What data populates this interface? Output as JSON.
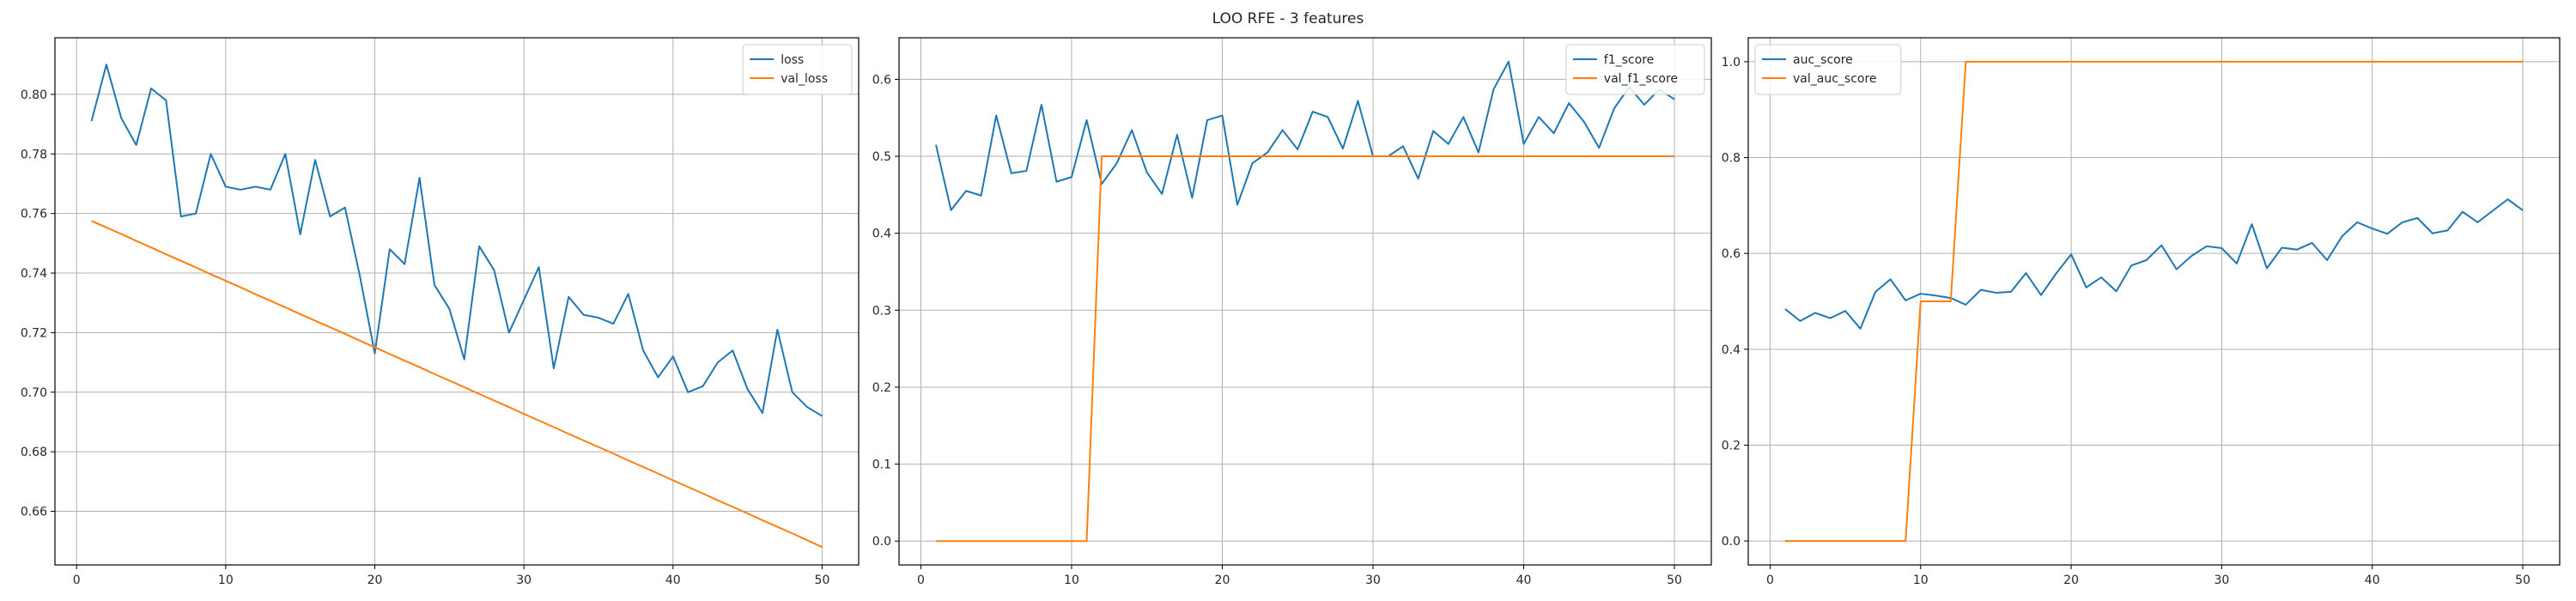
{
  "figure": {
    "title": "LOO RFE - 3 features"
  },
  "colors": {
    "series1": "#1f77b4",
    "series2": "#ff7f0e",
    "grid": "#b0b0b0",
    "axis": "#000000"
  },
  "chart_data": [
    {
      "type": "line",
      "title": "",
      "xlabel": "",
      "ylabel": "",
      "grid": true,
      "legend_position": "top-right",
      "xlim": [
        -1.45,
        52.45
      ],
      "ylim": [
        0.642,
        0.819
      ],
      "xticks": [
        0,
        10,
        20,
        30,
        40,
        50
      ],
      "yticks": [
        0.66,
        0.68,
        0.7,
        0.72,
        0.74,
        0.76,
        0.78,
        0.8
      ],
      "yticklabels": [
        "0.66",
        "0.68",
        "0.70",
        "0.72",
        "0.74",
        "0.76",
        "0.78",
        "0.80"
      ],
      "series": [
        {
          "name": "loss",
          "x": [
            1,
            2,
            3,
            4,
            5,
            6,
            7,
            8,
            9,
            10,
            11,
            12,
            13,
            14,
            15,
            16,
            17,
            18,
            19,
            20,
            21,
            22,
            23,
            24,
            25,
            26,
            27,
            28,
            29,
            30,
            31,
            32,
            33,
            34,
            35,
            36,
            37,
            38,
            39,
            40,
            41,
            42,
            43,
            44,
            45,
            46,
            47,
            48,
            49,
            50
          ],
          "y": [
            0.791,
            0.81,
            0.792,
            0.783,
            0.802,
            0.798,
            0.759,
            0.76,
            0.78,
            0.769,
            0.768,
            0.769,
            0.768,
            0.78,
            0.753,
            0.778,
            0.759,
            0.762,
            0.739,
            0.713,
            0.748,
            0.743,
            0.772,
            0.736,
            0.728,
            0.711,
            0.749,
            0.741,
            0.72,
            0.731,
            0.742,
            0.708,
            0.732,
            0.726,
            0.725,
            0.723,
            0.733,
            0.714,
            0.705,
            0.712,
            0.7,
            0.702,
            0.71,
            0.714,
            0.701,
            0.693,
            0.721,
            0.7,
            0.695,
            0.692
          ]
        },
        {
          "name": "val_loss",
          "x": [
            1,
            2,
            3,
            4,
            5,
            6,
            7,
            8,
            9,
            10,
            11,
            12,
            13,
            14,
            15,
            16,
            17,
            18,
            19,
            20,
            21,
            22,
            23,
            24,
            25,
            26,
            27,
            28,
            29,
            30,
            31,
            32,
            33,
            34,
            35,
            36,
            37,
            38,
            39,
            40,
            41,
            42,
            43,
            44,
            45,
            46,
            47,
            48,
            49,
            50
          ],
          "y": [
            0.7575,
            0.7553,
            0.7531,
            0.7508,
            0.7486,
            0.7463,
            0.7441,
            0.7419,
            0.7396,
            0.7374,
            0.7352,
            0.7329,
            0.7307,
            0.7285,
            0.7262,
            0.724,
            0.7218,
            0.7196,
            0.7173,
            0.7151,
            0.7128,
            0.7106,
            0.7084,
            0.7061,
            0.7039,
            0.7017,
            0.6994,
            0.6972,
            0.695,
            0.6927,
            0.6905,
            0.6883,
            0.686,
            0.6838,
            0.6816,
            0.6794,
            0.6771,
            0.6749,
            0.6727,
            0.6704,
            0.6682,
            0.666,
            0.6637,
            0.6615,
            0.6593,
            0.657,
            0.6548,
            0.6526,
            0.6503,
            0.648
          ]
        }
      ]
    },
    {
      "type": "line",
      "title": "",
      "xlabel": "",
      "ylabel": "",
      "grid": true,
      "legend_position": "top-right",
      "xlim": [
        -1.45,
        52.45
      ],
      "ylim": [
        -0.031,
        0.654
      ],
      "xticks": [
        0,
        10,
        20,
        30,
        40,
        50
      ],
      "yticks": [
        0.0,
        0.1,
        0.2,
        0.3,
        0.4,
        0.5,
        0.6
      ],
      "yticklabels": [
        "0.0",
        "0.1",
        "0.2",
        "0.3",
        "0.4",
        "0.5",
        "0.6"
      ],
      "series": [
        {
          "name": "f1_score",
          "x": [
            1,
            2,
            3,
            4,
            5,
            6,
            7,
            8,
            9,
            10,
            11,
            12,
            13,
            14,
            15,
            16,
            17,
            18,
            19,
            20,
            21,
            22,
            23,
            24,
            25,
            26,
            27,
            28,
            29,
            30,
            31,
            32,
            33,
            34,
            35,
            36,
            37,
            38,
            39,
            40,
            41,
            42,
            43,
            44,
            45,
            46,
            47,
            48,
            49,
            50
          ],
          "y": [
            0.515,
            0.43,
            0.455,
            0.449,
            0.553,
            0.478,
            0.481,
            0.567,
            0.467,
            0.473,
            0.547,
            0.464,
            0.491,
            0.534,
            0.479,
            0.451,
            0.528,
            0.446,
            0.547,
            0.553,
            0.437,
            0.491,
            0.505,
            0.534,
            0.509,
            0.558,
            0.551,
            0.51,
            0.572,
            0.5,
            0.5,
            0.513,
            0.471,
            0.533,
            0.516,
            0.551,
            0.505,
            0.587,
            0.623,
            0.516,
            0.551,
            0.53,
            0.569,
            0.545,
            0.511,
            0.562,
            0.59,
            0.567,
            0.587,
            0.574
          ]
        },
        {
          "name": "val_f1_score",
          "x": [
            1,
            2,
            3,
            4,
            5,
            6,
            7,
            8,
            9,
            10,
            11,
            12,
            13,
            14,
            15,
            16,
            17,
            18,
            19,
            20,
            21,
            22,
            23,
            24,
            25,
            26,
            27,
            28,
            29,
            30,
            31,
            32,
            33,
            34,
            35,
            36,
            37,
            38,
            39,
            40,
            41,
            42,
            43,
            44,
            45,
            46,
            47,
            48,
            49,
            50
          ],
          "y": [
            0.0,
            0.0,
            0.0,
            0.0,
            0.0,
            0.0,
            0.0,
            0.0,
            0.0,
            0.0,
            0.0,
            0.5,
            0.5,
            0.5,
            0.5,
            0.5,
            0.5,
            0.5,
            0.5,
            0.5,
            0.5,
            0.5,
            0.5,
            0.5,
            0.5,
            0.5,
            0.5,
            0.5,
            0.5,
            0.5,
            0.5,
            0.5,
            0.5,
            0.5,
            0.5,
            0.5,
            0.5,
            0.5,
            0.5,
            0.5,
            0.5,
            0.5,
            0.5,
            0.5,
            0.5,
            0.5,
            0.5,
            0.5,
            0.5,
            0.5
          ]
        }
      ]
    },
    {
      "type": "line",
      "title": "",
      "xlabel": "",
      "ylabel": "",
      "grid": true,
      "legend_position": "top-left",
      "xlim": [
        -1.45,
        52.45
      ],
      "ylim": [
        -0.05,
        1.05
      ],
      "xticks": [
        0,
        10,
        20,
        30,
        40,
        50
      ],
      "yticks": [
        0.0,
        0.2,
        0.4,
        0.6,
        0.8,
        1.0
      ],
      "yticklabels": [
        "0.0",
        "0.2",
        "0.4",
        "0.6",
        "0.8",
        "1.0"
      ],
      "series": [
        {
          "name": "auc_score",
          "x": [
            1,
            2,
            3,
            4,
            5,
            6,
            7,
            8,
            9,
            10,
            11,
            12,
            13,
            14,
            15,
            16,
            17,
            18,
            19,
            20,
            21,
            22,
            23,
            24,
            25,
            26,
            27,
            28,
            29,
            30,
            31,
            32,
            33,
            34,
            35,
            36,
            37,
            38,
            39,
            40,
            41,
            42,
            43,
            44,
            45,
            46,
            47,
            48,
            49,
            50
          ],
          "y": [
            0.484,
            0.459,
            0.476,
            0.465,
            0.48,
            0.443,
            0.52,
            0.546,
            0.502,
            0.516,
            0.512,
            0.507,
            0.493,
            0.524,
            0.518,
            0.52,
            0.559,
            0.513,
            0.558,
            0.598,
            0.529,
            0.55,
            0.521,
            0.575,
            0.586,
            0.617,
            0.567,
            0.595,
            0.615,
            0.611,
            0.579,
            0.661,
            0.569,
            0.612,
            0.608,
            0.622,
            0.586,
            0.636,
            0.665,
            0.652,
            0.641,
            0.665,
            0.674,
            0.642,
            0.648,
            0.687,
            0.665,
            0.689,
            0.713,
            0.69
          ]
        },
        {
          "name": "val_auc_score",
          "x": [
            1,
            2,
            3,
            4,
            5,
            6,
            7,
            8,
            9,
            10,
            11,
            12,
            13,
            14,
            15,
            16,
            17,
            18,
            19,
            20,
            21,
            22,
            23,
            24,
            25,
            26,
            27,
            28,
            29,
            30,
            31,
            32,
            33,
            34,
            35,
            36,
            37,
            38,
            39,
            40,
            41,
            42,
            43,
            44,
            45,
            46,
            47,
            48,
            49,
            50
          ],
          "y": [
            0.0,
            0.0,
            0.0,
            0.0,
            0.0,
            0.0,
            0.0,
            0.0,
            0.0,
            0.5,
            0.5,
            0.5,
            1.0,
            1.0,
            1.0,
            1.0,
            1.0,
            1.0,
            1.0,
            1.0,
            1.0,
            1.0,
            1.0,
            1.0,
            1.0,
            1.0,
            1.0,
            1.0,
            1.0,
            1.0,
            1.0,
            1.0,
            1.0,
            1.0,
            1.0,
            1.0,
            1.0,
            1.0,
            1.0,
            1.0,
            1.0,
            1.0,
            1.0,
            1.0,
            1.0,
            1.0,
            1.0,
            1.0,
            1.0,
            1.0
          ]
        }
      ]
    }
  ]
}
